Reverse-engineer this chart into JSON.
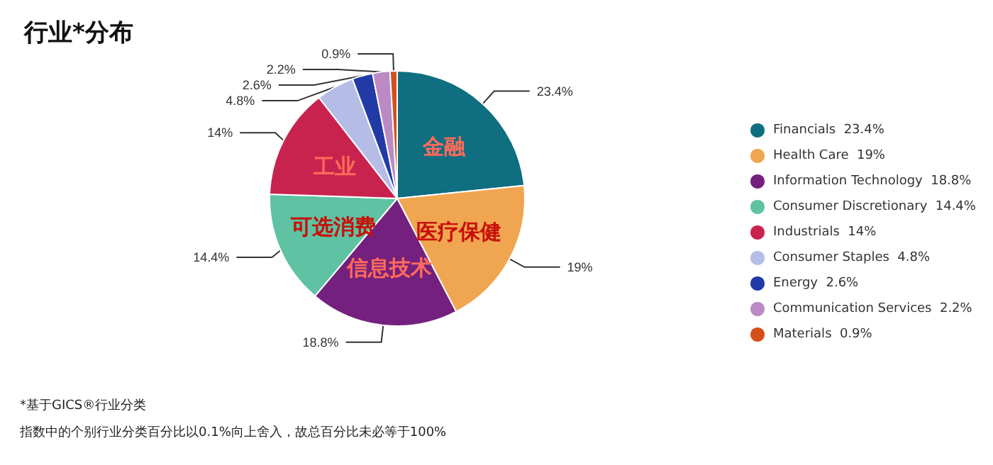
{
  "chart_data": {
    "type": "pie",
    "title": "行业*分布",
    "categories": [
      "Financials",
      "Health Care",
      "Information Technology",
      "Consumer Discretionary",
      "Industrials",
      "Consumer Staples",
      "Energy",
      "Communication Services",
      "Materials"
    ],
    "values": [
      23.4,
      19,
      18.8,
      14.4,
      14,
      4.8,
      2.6,
      2.2,
      0.9
    ],
    "value_labels": [
      "23.4%",
      "19%",
      "18.8%",
      "14.4%",
      "14%",
      "4.8%",
      "2.6%",
      "2.2%",
      "0.9%"
    ],
    "colors": [
      "#0f6e80",
      "#f0a650",
      "#74207e",
      "#5ec2a3",
      "#c8234f",
      "#b5bde6",
      "#223aa6",
      "#bb89c4",
      "#d4501a"
    ],
    "legend": "right",
    "annotations": [
      {
        "text": "金融",
        "x": "Financials"
      },
      {
        "text": "医疗保健",
        "x": "Health Care"
      },
      {
        "text": "信息技术",
        "x": "Information Technology"
      },
      {
        "text": "可选消费",
        "x": "Consumer Discretionary"
      },
      {
        "text": "工业",
        "x": "Industrials"
      },
      "*基于GICS®行业分类",
      "指数中的个别行业分类百分比以0.1%向上舍入，故总百分比未必等于100%"
    ]
  }
}
